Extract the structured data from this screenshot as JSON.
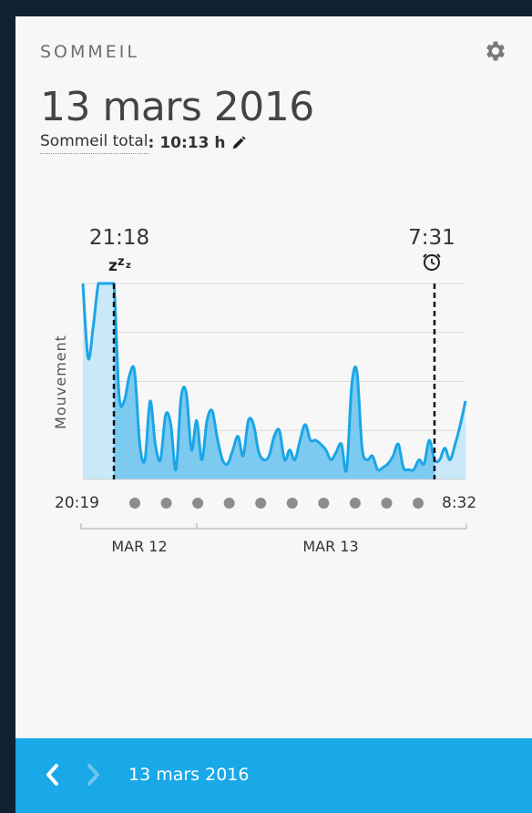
{
  "header": {
    "section_label": "SOMMEIL",
    "date_title": "13 mars 2016",
    "total_label": "Sommeil total",
    "total_colon": ":",
    "total_value": "10:13 h",
    "settings_icon": "gear-icon",
    "edit_icon": "pencil-icon"
  },
  "chart_data": {
    "type": "area",
    "ylabel": "Mouvement",
    "start_label": "20:19",
    "end_label": "8:32",
    "sleep_start": "21:18",
    "wake_time": "7:31",
    "sleep_icon": "zzz-icon",
    "wake_icon": "alarm-clock-icon",
    "day_labels": [
      "MAR 12",
      "MAR 13"
    ],
    "hour_dots": 10,
    "grid": true,
    "ylim": [
      0,
      100
    ],
    "x": [
      "20:19",
      "20:30",
      "20:40",
      "20:50",
      "21:00",
      "21:10",
      "21:18",
      "21:25",
      "21:35",
      "21:45",
      "21:55",
      "22:05",
      "22:15",
      "22:25",
      "22:35",
      "22:45",
      "22:55",
      "23:05",
      "23:15",
      "23:25",
      "23:35",
      "23:45",
      "23:55",
      "0:05",
      "0:15",
      "0:25",
      "0:35",
      "0:45",
      "0:55",
      "1:05",
      "1:15",
      "1:25",
      "1:35",
      "1:45",
      "1:55",
      "2:05",
      "2:15",
      "2:25",
      "2:35",
      "2:45",
      "2:55",
      "3:05",
      "3:15",
      "3:25",
      "3:35",
      "3:45",
      "3:55",
      "4:05",
      "4:15",
      "4:25",
      "4:35",
      "4:45",
      "4:55",
      "5:05",
      "5:15",
      "5:25",
      "5:35",
      "5:45",
      "5:55",
      "6:05",
      "6:15",
      "6:25",
      "6:35",
      "6:45",
      "6:55",
      "7:05",
      "7:15",
      "7:25",
      "7:31",
      "7:40",
      "7:50",
      "8:00",
      "8:10",
      "8:20",
      "8:32"
    ],
    "values": [
      100,
      62,
      78,
      100,
      100,
      100,
      100,
      43,
      40,
      53,
      55,
      18,
      10,
      40,
      18,
      10,
      33,
      28,
      5,
      42,
      44,
      15,
      30,
      10,
      30,
      35,
      21,
      10,
      8,
      15,
      22,
      12,
      30,
      28,
      14,
      10,
      12,
      22,
      25,
      10,
      15,
      10,
      20,
      28,
      20,
      20,
      18,
      15,
      10,
      14,
      18,
      5,
      48,
      55,
      16,
      10,
      12,
      5,
      6,
      8,
      12,
      18,
      6,
      5,
      5,
      10,
      8,
      20,
      10,
      10,
      16,
      10,
      18,
      28,
      40
    ],
    "sleep_values": [
      0,
      0,
      0,
      0,
      0,
      0,
      100,
      43,
      40,
      53,
      55,
      18,
      10,
      40,
      18,
      10,
      33,
      28,
      5,
      42,
      44,
      15,
      30,
      10,
      30,
      35,
      21,
      10,
      8,
      15,
      22,
      12,
      30,
      28,
      14,
      10,
      12,
      22,
      25,
      10,
      15,
      10,
      20,
      28,
      20,
      20,
      18,
      15,
      10,
      14,
      18,
      5,
      48,
      55,
      16,
      10,
      12,
      5,
      6,
      8,
      12,
      18,
      6,
      5,
      5,
      10,
      8,
      20,
      0,
      0,
      0,
      0,
      0,
      0,
      0
    ]
  },
  "footer": {
    "date": "13 mars 2016",
    "prev_icon": "chevron-left-icon",
    "next_icon": "chevron-right-icon"
  }
}
